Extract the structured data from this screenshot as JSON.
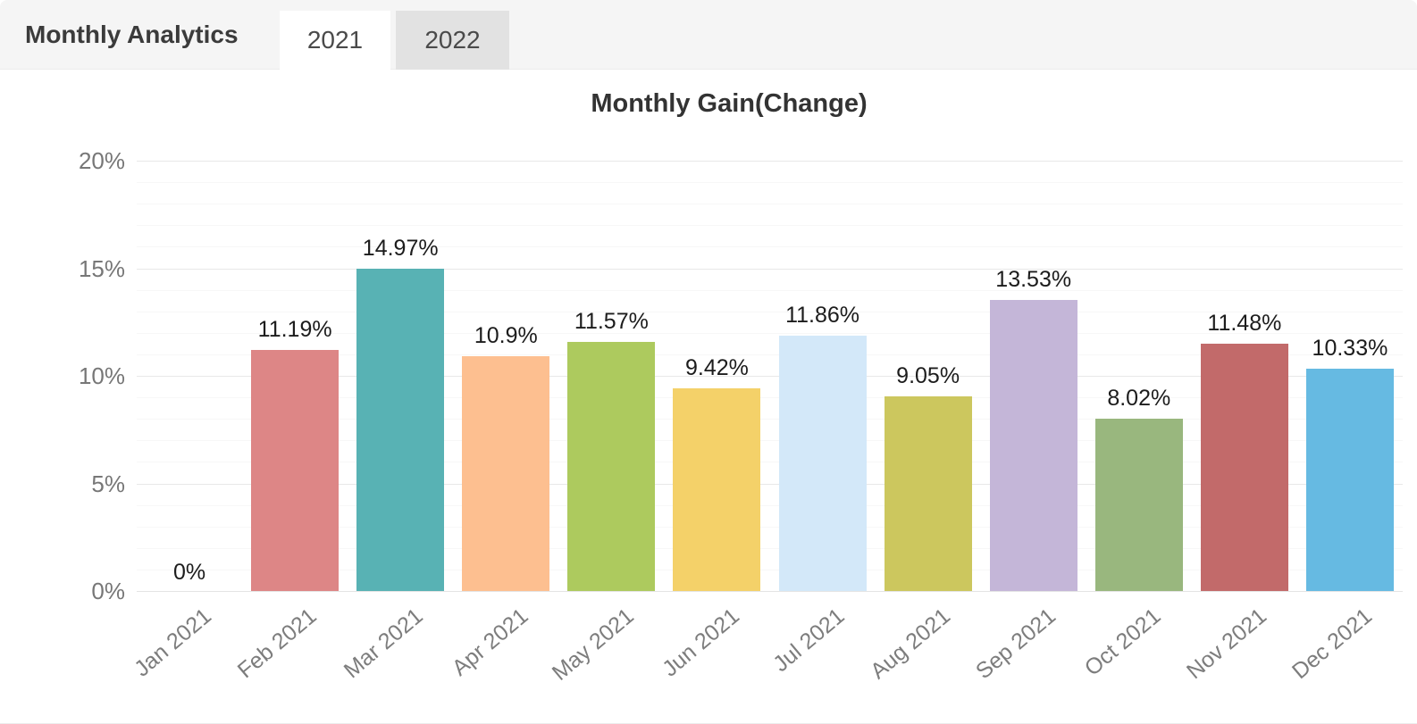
{
  "header": {
    "title": "Monthly Analytics",
    "tabs": [
      {
        "label": "2021",
        "active": true
      },
      {
        "label": "2022",
        "active": false
      }
    ]
  },
  "chart_data": {
    "type": "bar",
    "title": "Monthly Gain(Change)",
    "categories": [
      "Jan 2021",
      "Feb 2021",
      "Mar 2021",
      "Apr 2021",
      "May 2021",
      "Jun 2021",
      "Jul 2021",
      "Aug 2021",
      "Sep 2021",
      "Oct 2021",
      "Nov 2021",
      "Dec 2021"
    ],
    "values": [
      0,
      11.19,
      14.97,
      10.9,
      11.57,
      9.42,
      11.86,
      9.05,
      13.53,
      8.02,
      11.48,
      10.33
    ],
    "value_labels": [
      "0%",
      "11.19%",
      "14.97%",
      "10.9%",
      "11.57%",
      "9.42%",
      "11.86%",
      "9.05%",
      "13.53%",
      "8.02%",
      "11.48%",
      "10.33%"
    ],
    "bar_colors": [
      "#dd8686",
      "#dd8686",
      "#58b2b4",
      "#fdbf90",
      "#adca5e",
      "#f4d169",
      "#d3e8f9",
      "#ccc75e",
      "#c4b6d8",
      "#99b77e",
      "#c26a6a",
      "#66bae2"
    ],
    "xlabel": "",
    "ylabel": "",
    "y_ticks": [
      "0%",
      "5%",
      "10%",
      "15%",
      "20%"
    ],
    "ylim": [
      0,
      20
    ],
    "grid": {
      "major_interval_pct": 5,
      "minor_interval_pct": 1
    },
    "legend": "none"
  }
}
